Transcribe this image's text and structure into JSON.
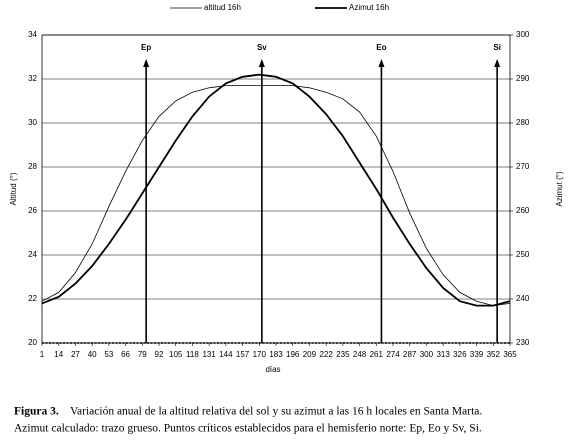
{
  "chart_data": {
    "type": "line",
    "x_label": "días",
    "y_label": "Altitud (°)",
    "y2_label": "Azimut (°)",
    "x": [
      1,
      14,
      27,
      40,
      53,
      66,
      79,
      92,
      105,
      118,
      131,
      144,
      157,
      170,
      183,
      196,
      209,
      222,
      235,
      248,
      261,
      274,
      287,
      300,
      313,
      326,
      339,
      352,
      365
    ],
    "xlim": [
      1,
      365
    ],
    "xticks": [
      1,
      14,
      27,
      40,
      53,
      66,
      79,
      92,
      105,
      118,
      131,
      144,
      157,
      170,
      183,
      196,
      209,
      222,
      235,
      248,
      261,
      274,
      287,
      300,
      313,
      326,
      339,
      352,
      365
    ],
    "ylim": [
      20,
      34
    ],
    "yticks": [
      20,
      22,
      24,
      26,
      28,
      30,
      32,
      34
    ],
    "y2lim": [
      230,
      300
    ],
    "y2ticks": [
      230,
      240,
      250,
      260,
      270,
      280,
      290,
      300
    ],
    "grid": true,
    "series": [
      {
        "name": "altitud 16h",
        "color": "#000000",
        "width": "thin",
        "values": [
          21.9,
          22.3,
          23.2,
          24.5,
          26.2,
          27.8,
          29.2,
          30.3,
          31.0,
          31.4,
          31.6,
          31.7,
          31.7,
          31.7,
          31.7,
          31.7,
          31.6,
          31.4,
          31.1,
          30.5,
          29.4,
          27.8,
          25.9,
          24.3,
          23.1,
          22.3,
          21.9,
          21.7,
          21.8
        ]
      },
      {
        "name": "Azimut  16h",
        "color": "#000000",
        "width": "thick",
        "axis": "y2",
        "values": [
          239,
          240.5,
          243.5,
          247.5,
          252.5,
          258,
          264,
          270,
          276,
          281.5,
          286,
          289,
          290.5,
          291,
          290.5,
          289,
          286,
          282,
          277,
          271,
          265,
          258.5,
          252.5,
          247,
          242.5,
          239.5,
          238.5,
          238.5,
          239.5
        ]
      }
    ],
    "annotations": [
      {
        "label": "Ep",
        "x": 82
      },
      {
        "label": "Sv",
        "x": 172
      },
      {
        "label": "Eo",
        "x": 265
      },
      {
        "label": "Si",
        "x": 355
      }
    ],
    "caption": {
      "label": "Figura 3.",
      "line1": "Variación anual de la altitud relativa del sol y su azimut a las 16 h locales en Santa Marta.",
      "line2": "Azimut calculado: trazo grueso. Puntos críticos establecidos para el hemisferio norte: Ep, Eo y Sv, Si."
    }
  }
}
